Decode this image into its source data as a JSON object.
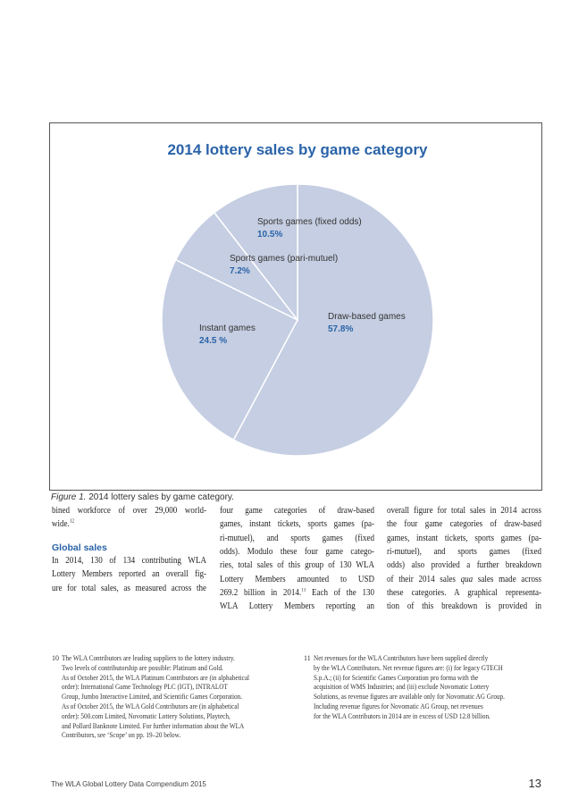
{
  "chart_data": {
    "type": "pie",
    "title": "2014 lottery sales by game category",
    "categories": [
      "Draw-based games",
      "Instant games",
      "Sports games (pari-mutuel)",
      "Sports games (fixed odds)"
    ],
    "values": [
      57.8,
      24.5,
      7.2,
      10.5
    ],
    "value_labels": [
      "57.8%",
      "24.5 %",
      "7.2%",
      "10.5%"
    ],
    "color": "#c5cee2"
  },
  "caption": {
    "label": "Figure 1.",
    "text": "2014 lottery sales by game category."
  },
  "columns": [
    {
      "lines": [
        "bined workforce of over 29,000 world-",
        {
          "text": "wide.",
          "sup": "12"
        }
      ],
      "heading": "Global sales",
      "lines2": [
        "In 2014, 130 of 134 contributing WLA",
        "Lottery Members reported an overall fig-",
        "ure for total sales, as measured across the"
      ]
    },
    {
      "lines": [
        "four game categories of draw-based",
        "games, instant tickets, sports games (pa-",
        "ri-mutuel), and sports games (fixed",
        "odds). Modulo these four game catego-",
        "ries, total sales of this group of 130 WLA",
        "Lottery Members amounted to USD",
        {
          "text": "269.2 billion in 2014.",
          "sup": "13",
          "after": " Each of the 130"
        },
        "WLA Lottery Members reporting an"
      ]
    },
    {
      "lines": [
        "overall figure for total sales in 2014 across",
        "the four game categories of draw-based",
        "games, instant tickets, sports games (pa-",
        "ri-mutuel), and sports games (fixed",
        "odds) also provided a further breakdown",
        {
          "text": "of their 2014 sales ",
          "em": "qua",
          "after": " sales made across"
        },
        "these categories. A graphical representa-",
        "tion of this breakdown is provided in"
      ]
    }
  ],
  "footnotes": [
    {
      "number": "10",
      "lines": [
        "The WLA Contributors are leading suppliers to the lottery industry.",
        "Two levels of contributorship are possible: Platinum and Gold.",
        "As of October 2015, the WLA Platinum Contributors are (in alphabetical",
        "order): International Game Technology PLC (IGT), INTRALOT",
        "Group, Jumbo Interactive Limited, and Scientific Games Corporation.",
        "As of October 2015, the WLA Gold Contributors are (in alphabetical",
        "order): 500.com Limited, Novomatic Lottery Solutions, Playtech,",
        "and Pollard Banknote Limited. For further information about the WLA",
        "Contributors, see ‘Scope’ on pp. 19–20 below."
      ]
    },
    {
      "number": "11",
      "lines": [
        "Net revenues for the WLA Contributors have been supplied directly",
        "by the WLA Contributors. Net revenue figures are: (i) for legacy GTECH",
        "S.p.A.; (ii) for Scientific Games Corporation pro forma with the",
        "acquisition of WMS Industries; and (iii) exclude Novomatic Lottery",
        "Solutions, as revenue figures are available only for Novomatic AG Group.",
        "Including revenue figures for Novomatic AG Group, net revenues",
        "for the WLA Contributors in 2014 are in excess of USD 12.8 billion."
      ]
    }
  ],
  "footer": {
    "text": "The WLA Global Lottery Data Compendium 2015",
    "page": "13"
  }
}
